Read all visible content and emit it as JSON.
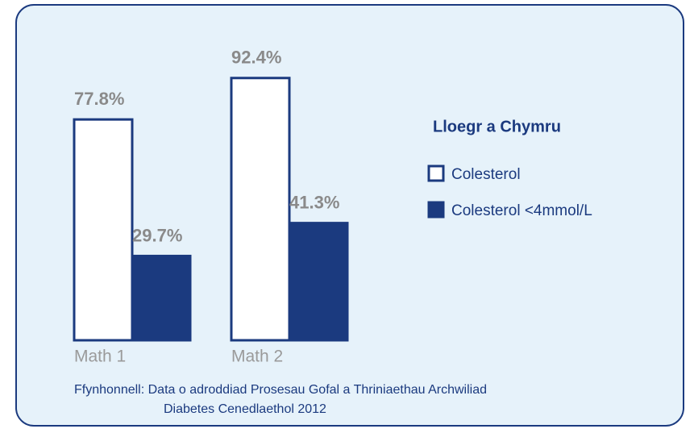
{
  "chart_data": {
    "type": "bar",
    "categories": [
      "Math 1",
      "Math 2"
    ],
    "series": [
      {
        "name": "Colesterol",
        "color": "#1b3a7f",
        "fill": "#ffffff",
        "values": [
          77.8,
          92.4
        ],
        "value_labels": [
          "77.8%",
          "92.4%"
        ]
      },
      {
        "name": "Colesterol <4mmol/L",
        "color": "#1b3a7f",
        "fill": "#1b3a7f",
        "values": [
          29.7,
          41.3
        ],
        "value_labels": [
          "29.7%",
          "41.3%"
        ]
      }
    ],
    "ylim": [
      0,
      100
    ],
    "legend_title": "Lloegr a Chymru",
    "source": [
      "Ffynhonnell: Data o adroddiad Prosesau Gofal a Thriniaethau Archwiliad",
      "Diabetes Cenedlaethol 2012"
    ]
  }
}
